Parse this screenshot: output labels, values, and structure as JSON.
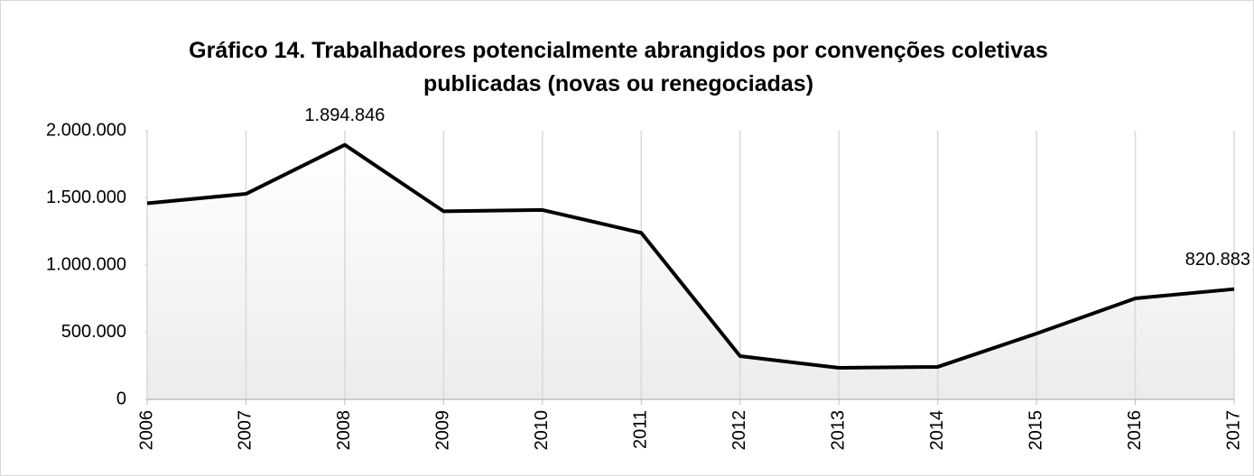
{
  "chart_data": {
    "type": "line",
    "title": "Gráfico 14. Trabalhadores potencialmente abrangidos por convenções coletivas publicadas (novas ou renegociadas)",
    "categories": [
      "2006",
      "2007",
      "2008",
      "2009",
      "2010",
      "2011",
      "2012",
      "2013",
      "2014",
      "2015",
      "2016",
      "2017"
    ],
    "series": [
      {
        "color": "#000000",
        "values": [
          1460000,
          1530000,
          1894846,
          1400000,
          1410000,
          1240000,
          322000,
          235000,
          242000,
          490000,
          752000,
          820883
        ],
        "value_labels": [
          null,
          null,
          "1.894.846",
          null,
          null,
          null,
          null,
          null,
          null,
          null,
          null,
          "820.883"
        ]
      }
    ],
    "ylim": [
      0,
      2000000
    ],
    "yticks": [
      0,
      {
        "value": 500000,
        "label": "500.000"
      },
      {
        "value": 1000000,
        "label": "1.000.000"
      },
      {
        "value": 1500000,
        "label": "1.500.000"
      },
      {
        "value": 2000000,
        "label": "2.000.000"
      }
    ],
    "grid": true
  }
}
